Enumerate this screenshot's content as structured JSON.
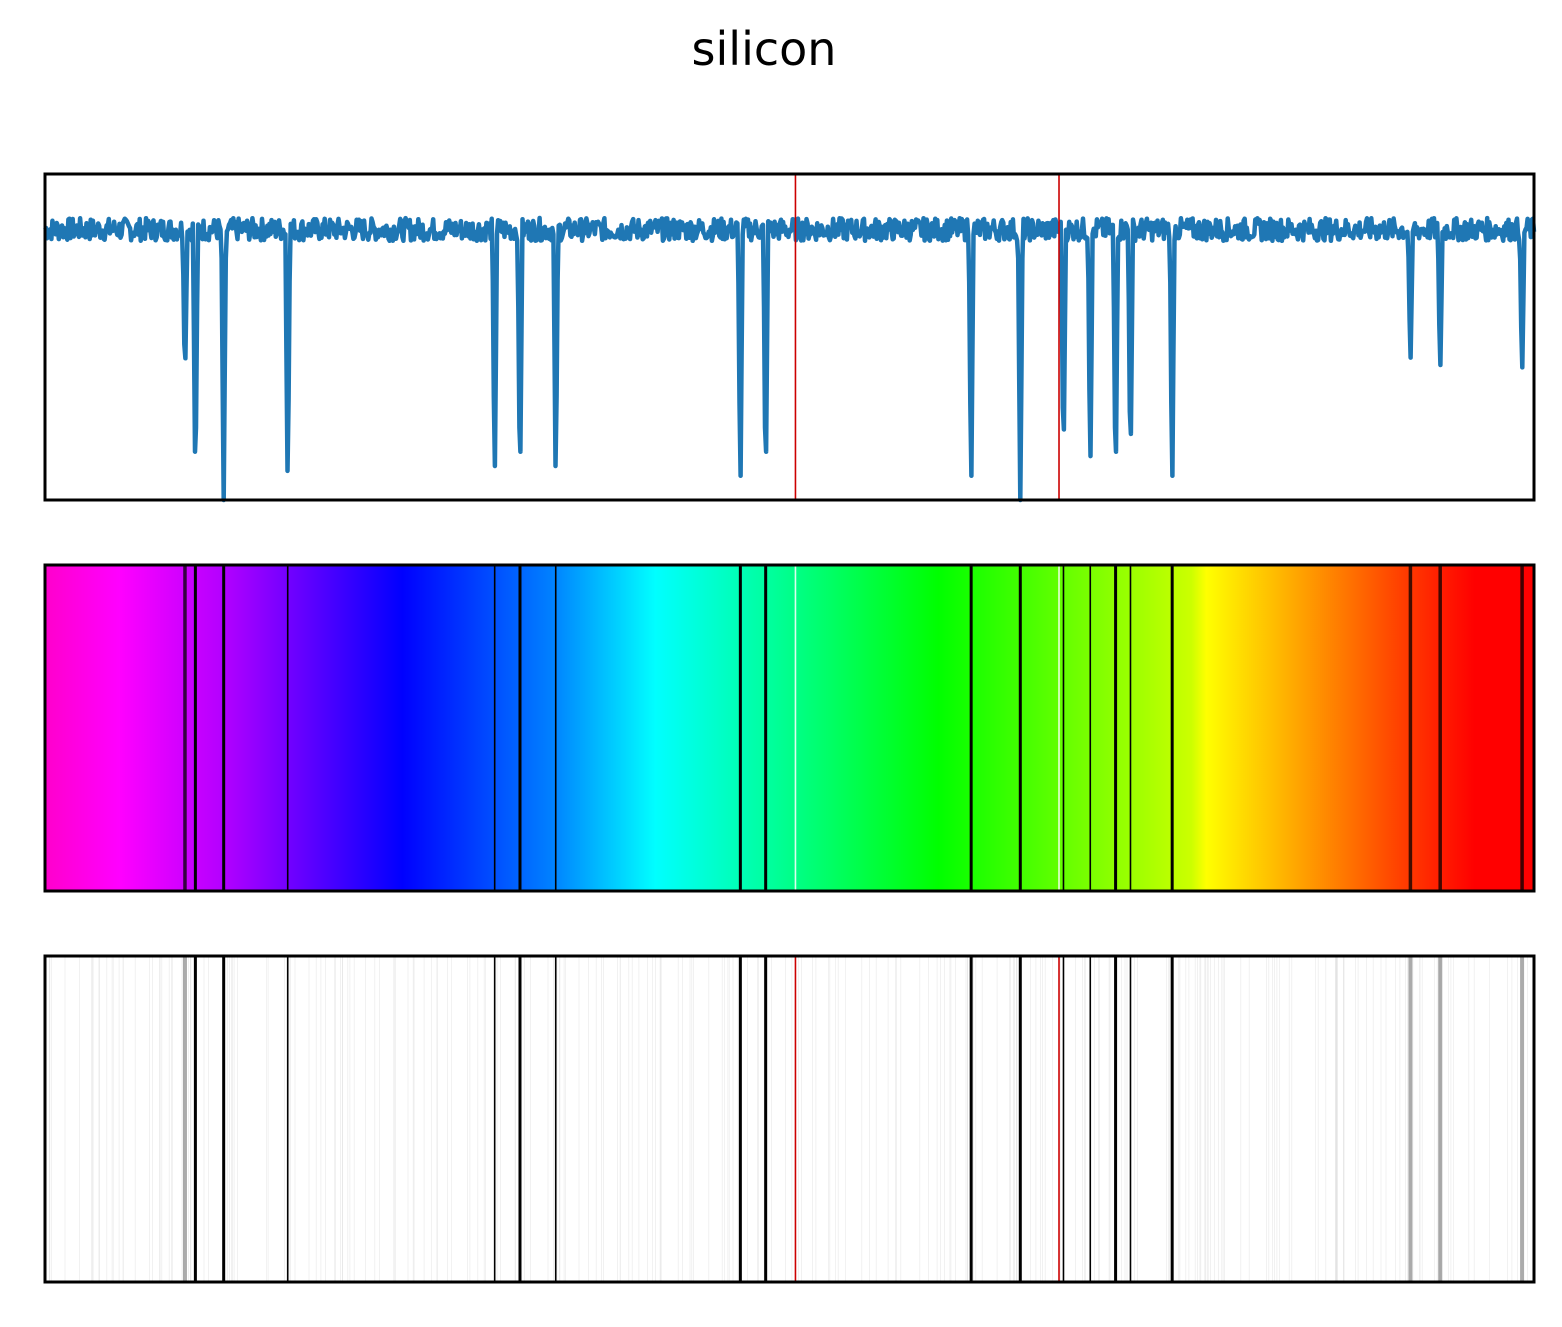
{
  "chart_data": {
    "type": "line",
    "title": "silicon",
    "xlabel": "",
    "ylabel": "",
    "x_range": [
      0,
      1000
    ],
    "y_range": [
      0,
      1
    ],
    "ticks": "none",
    "baseline_level": 0.83,
    "line_color": "#1f77b4",
    "marker_color": "#cc0000",
    "reference_lines_x": [
      504,
      681
    ],
    "absorption_lines": [
      {
        "x": 94,
        "depth": 0.58
      },
      {
        "x": 101,
        "depth": 1.0
      },
      {
        "x": 120,
        "depth": 1.0
      },
      {
        "x": 163,
        "depth": 0.98
      },
      {
        "x": 302,
        "depth": 0.96
      },
      {
        "x": 319,
        "depth": 1.0
      },
      {
        "x": 343,
        "depth": 0.96
      },
      {
        "x": 467,
        "depth": 1.0
      },
      {
        "x": 484,
        "depth": 1.0
      },
      {
        "x": 622,
        "depth": 1.0
      },
      {
        "x": 655,
        "depth": 1.0
      },
      {
        "x": 684,
        "depth": 0.9
      },
      {
        "x": 702,
        "depth": 0.92
      },
      {
        "x": 719,
        "depth": 1.0
      },
      {
        "x": 729,
        "depth": 0.92
      },
      {
        "x": 757,
        "depth": 1.0
      },
      {
        "x": 917,
        "depth": 0.52
      },
      {
        "x": 937,
        "depth": 0.55
      },
      {
        "x": 992,
        "depth": 0.56
      }
    ],
    "panels": [
      "intensity",
      "rainbow-spectrum",
      "grayscale-spectrum"
    ]
  }
}
